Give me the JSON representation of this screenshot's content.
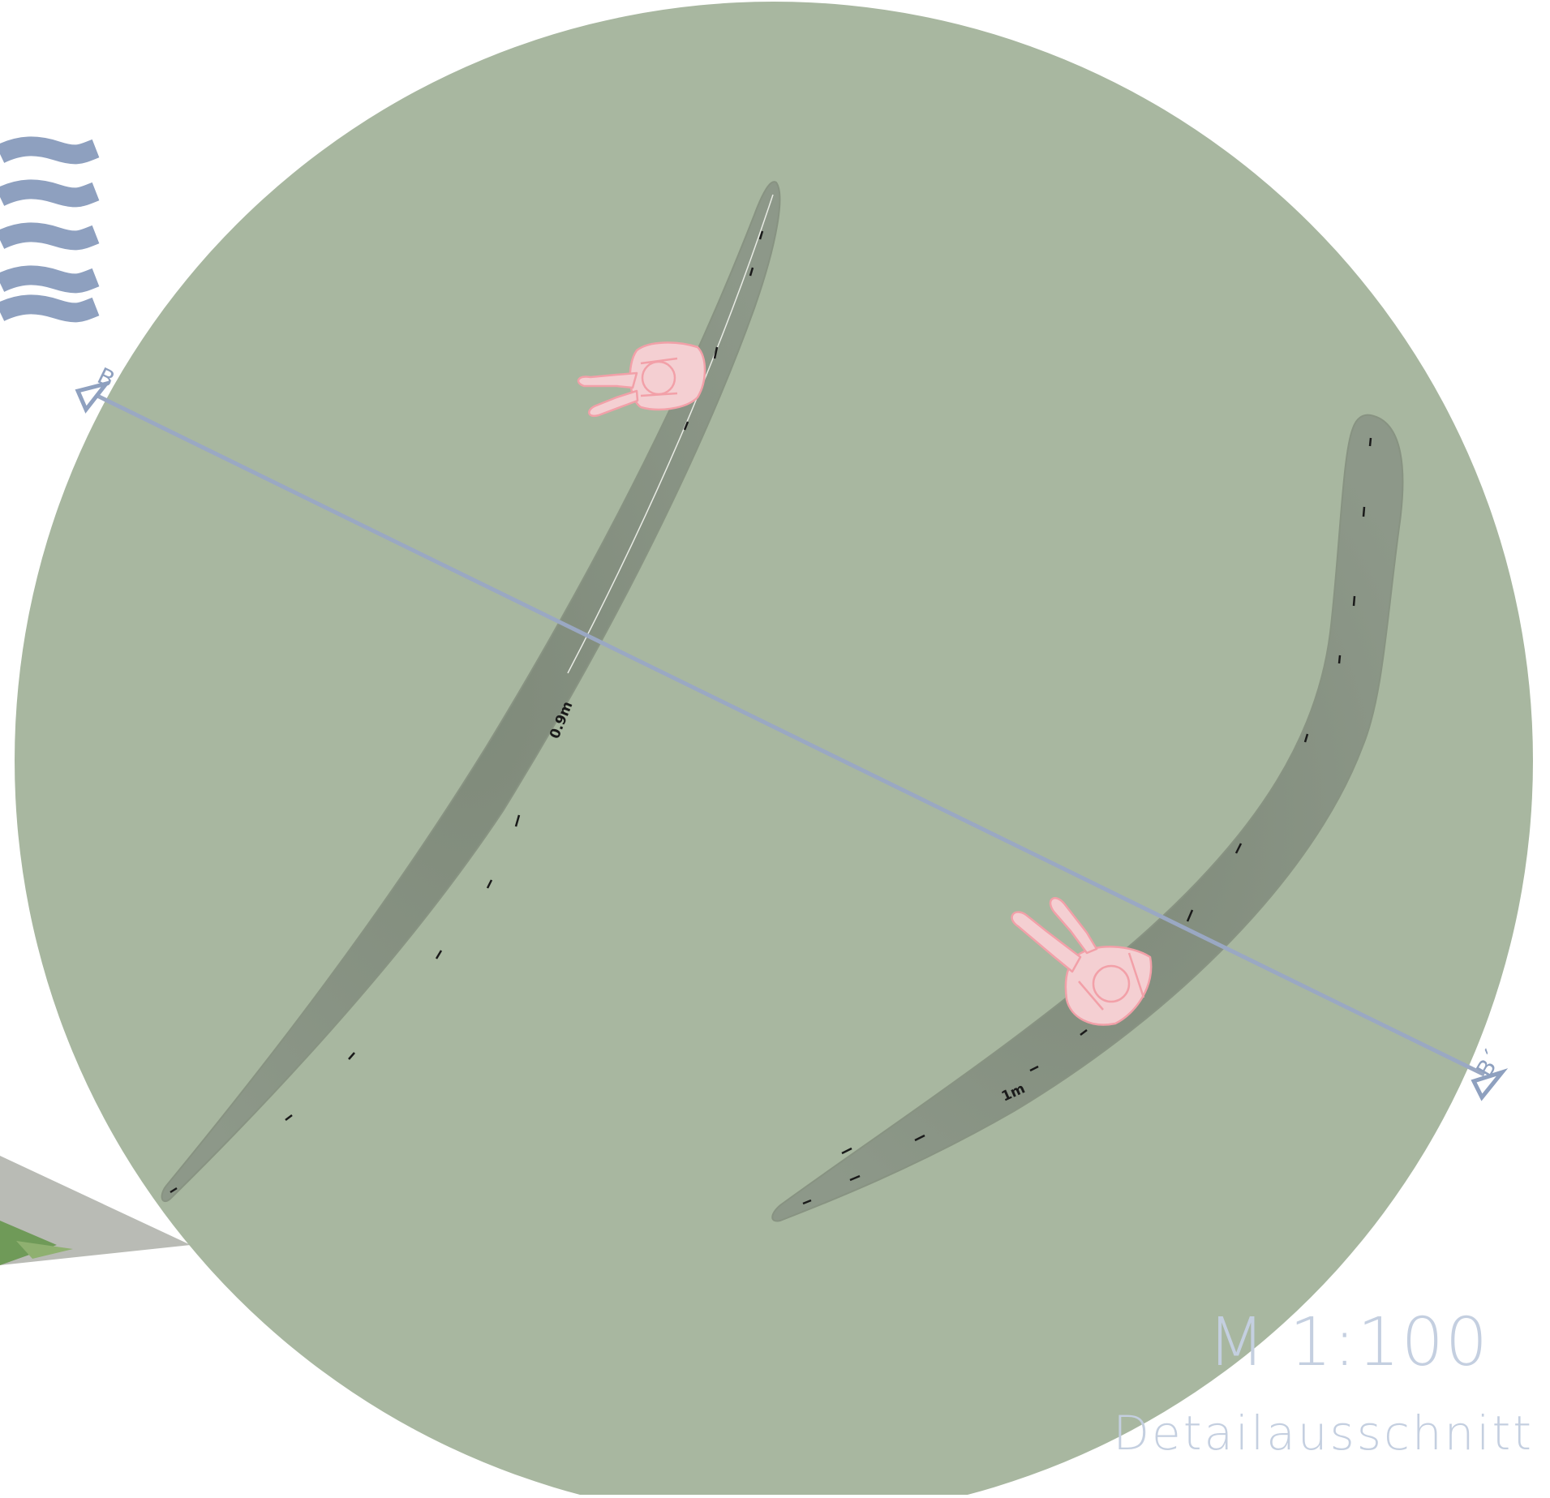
{
  "colors": {
    "background": "#ffffff",
    "circle": "#a8b7a0",
    "bench": "#8a9585",
    "section_line": "#9aa8c3",
    "waves": "#8ea0bf",
    "figures": "#f2a0a8",
    "scale_text": "#c4cfe0"
  },
  "section": {
    "start_label": "B",
    "end_label": "B´"
  },
  "dimensions": {
    "bench_1_width": "0.9m",
    "bench_2_width": "1m"
  },
  "icons": [
    "water-waves-icon",
    "person-icon",
    "section-marker-icon"
  ],
  "scale": {
    "ratio": "M 1:100",
    "title": "Detailausschnitt"
  }
}
